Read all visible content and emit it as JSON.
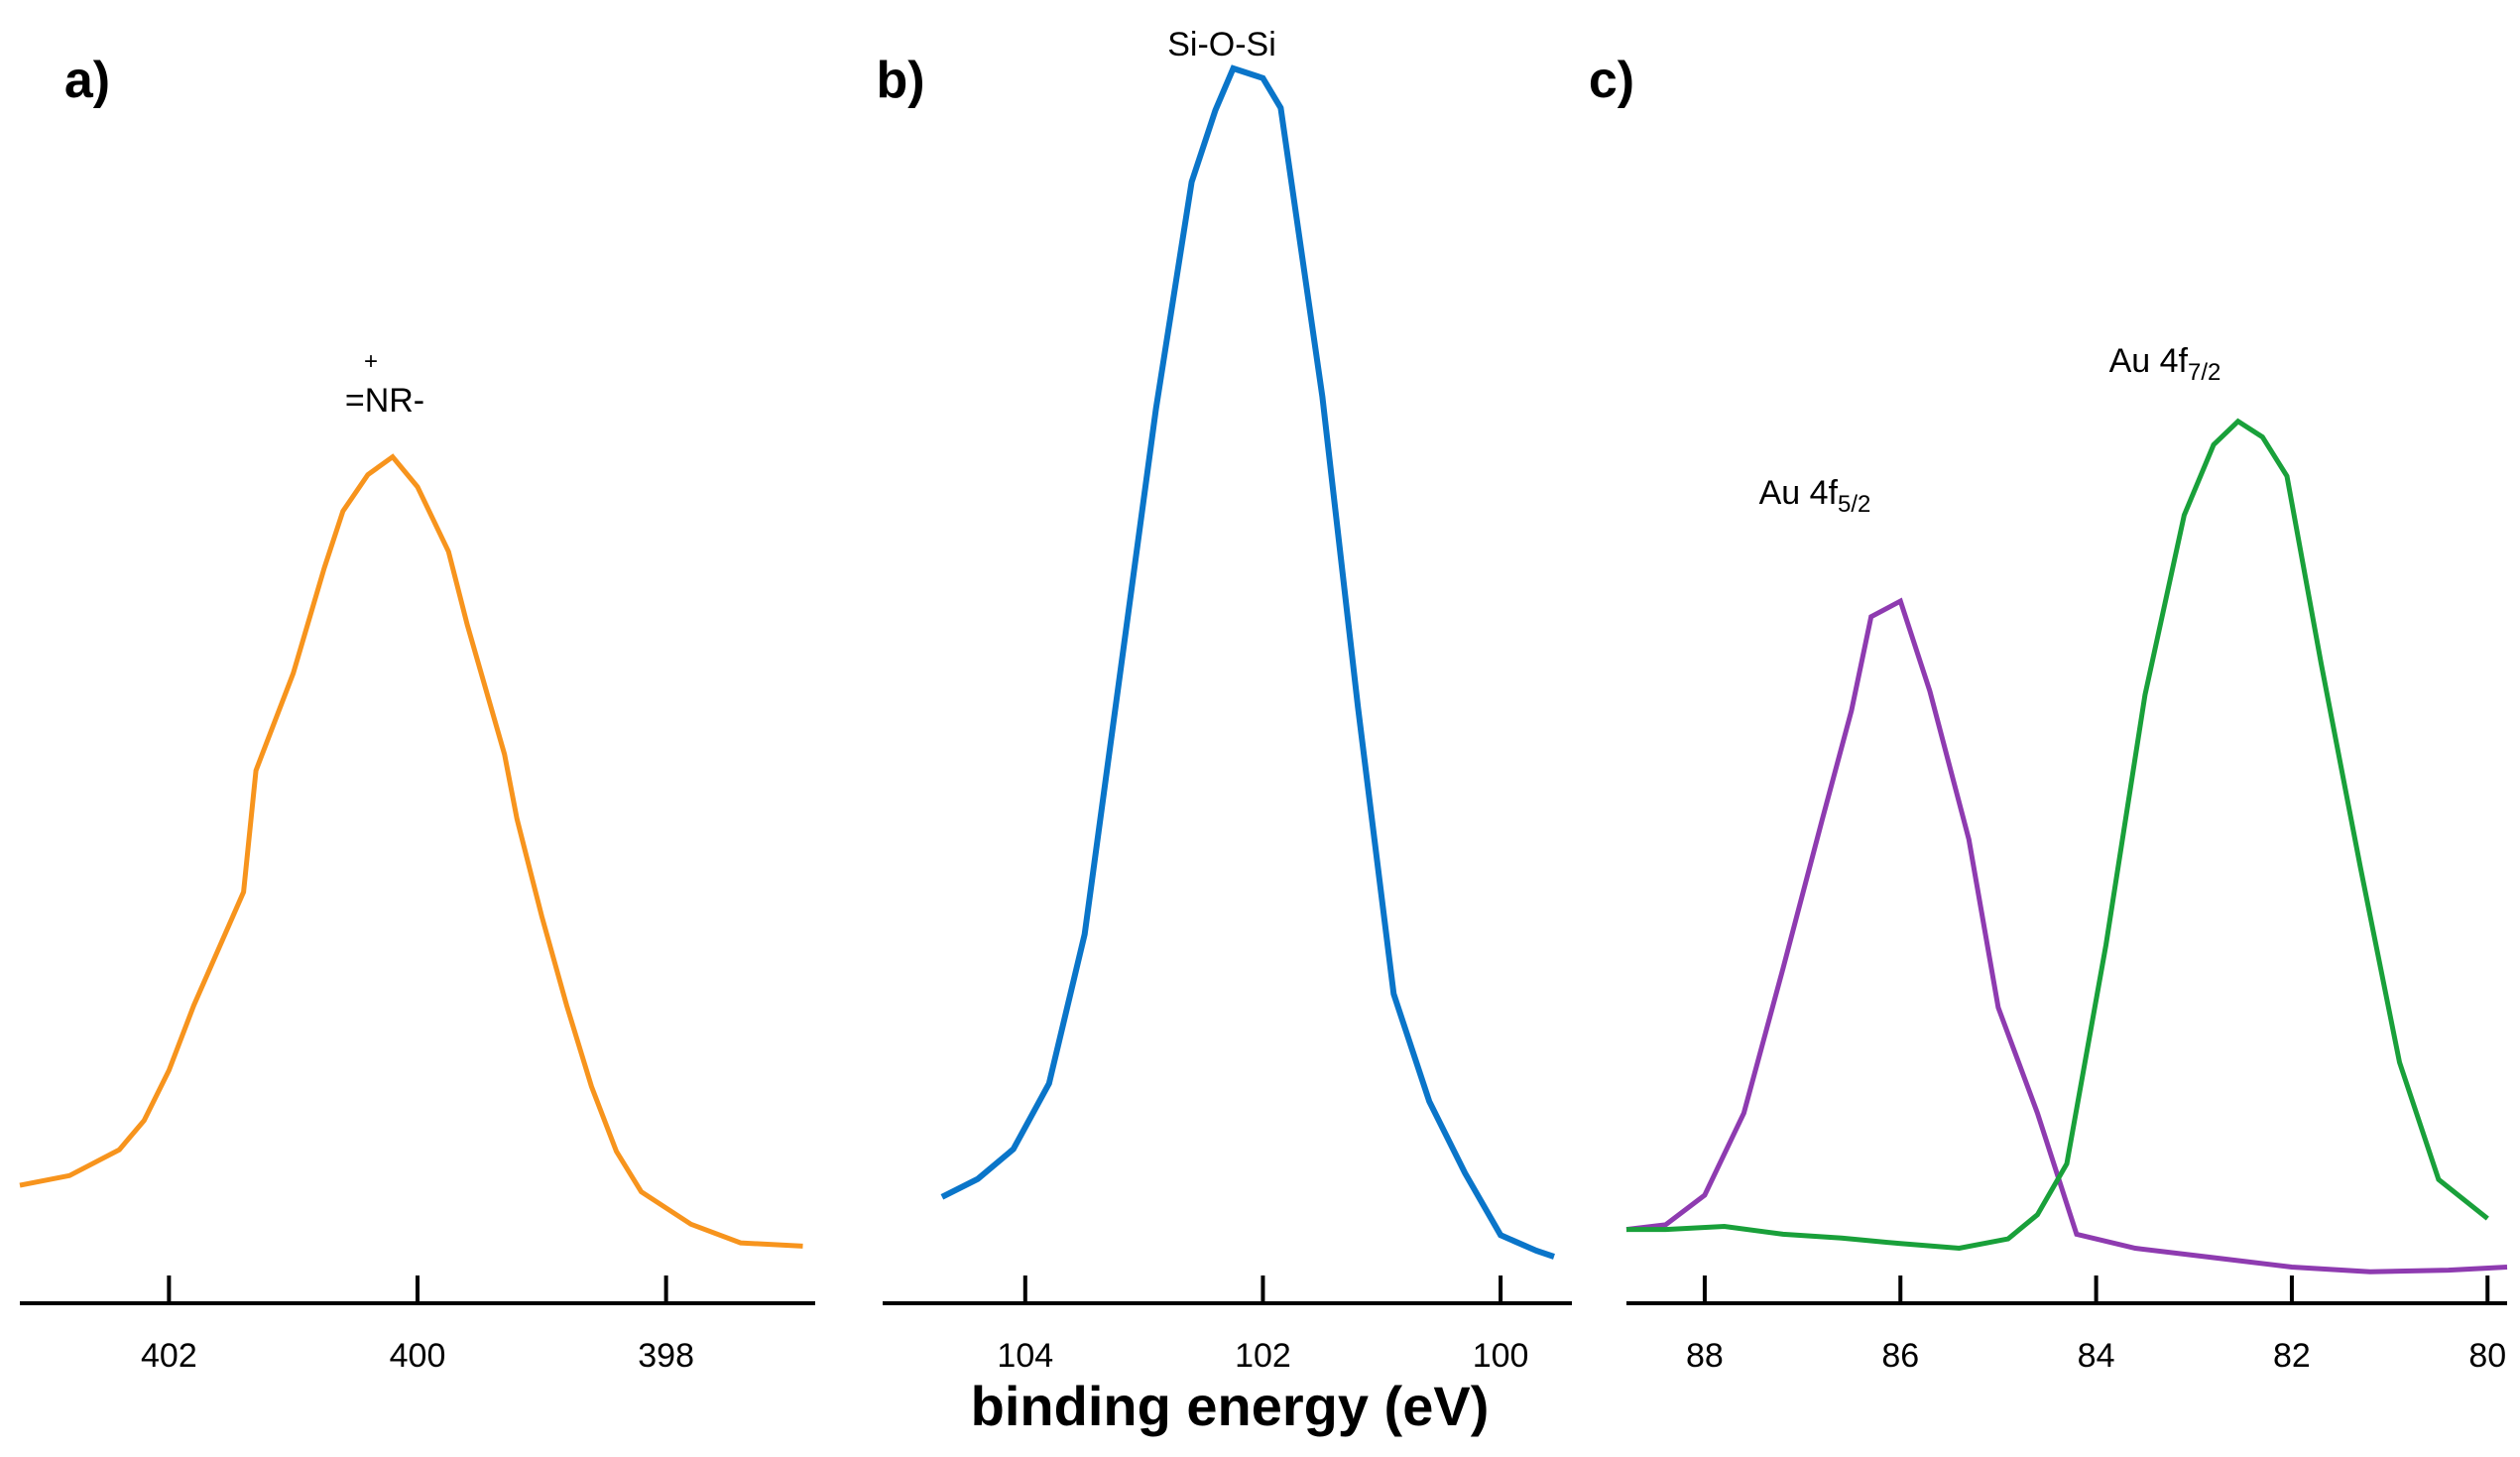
{
  "xlabel": "binding energy (eV)",
  "chart_data": [
    {
      "type": "line",
      "panel_label": "a)",
      "xlabel": "",
      "ylabel": "",
      "xlim": [
        403.2,
        396.8
      ],
      "x_reversed": true,
      "y_axis_shown": false,
      "xticks": [
        402,
        400,
        398
      ],
      "xtick_labels": [
        "402",
        "400",
        "398"
      ],
      "series": [
        {
          "color": "#F7941D",
          "x": [
            403.2,
            402.8,
            402.4,
            402.2,
            402.0,
            401.8,
            401.6,
            401.4,
            401.3,
            401.0,
            400.75,
            400.6,
            400.4,
            400.2,
            400.0,
            399.75,
            399.6,
            399.3,
            399.2,
            399.0,
            398.8,
            398.6,
            398.4,
            398.2,
            397.8,
            397.4,
            396.9
          ],
          "y": [
            0.088,
            0.1,
            0.132,
            0.168,
            0.23,
            0.31,
            0.38,
            0.45,
            0.6,
            0.72,
            0.85,
            0.92,
            0.965,
            0.987,
            0.95,
            0.87,
            0.78,
            0.62,
            0.54,
            0.42,
            0.31,
            0.21,
            0.13,
            0.08,
            0.04,
            0.017,
            0.013
          ]
        }
      ],
      "annotations": [
        {
          "text": "=NR-",
          "superscript": "+",
          "x": 400.4
        }
      ]
    },
    {
      "type": "line",
      "panel_label": "b)",
      "xlabel": "binding energy (eV)",
      "ylabel": "",
      "xlim": [
        105.2,
        99.4
      ],
      "x_reversed": true,
      "y_axis_shown": false,
      "xticks": [
        104,
        102,
        100
      ],
      "xtick_labels": [
        "104",
        "102",
        "100"
      ],
      "series": [
        {
          "color": "#0A75C9",
          "x": [
            104.7,
            104.4,
            104.1,
            103.8,
            103.5,
            103.2,
            102.9,
            102.6,
            102.4,
            102.25,
            102.0,
            101.85,
            101.5,
            101.2,
            100.9,
            100.6,
            100.3,
            100.0,
            99.7,
            99.55
          ],
          "y": [
            0.05,
            0.065,
            0.09,
            0.145,
            0.27,
            0.49,
            0.71,
            0.9,
            0.96,
            0.995,
            0.987,
            0.962,
            0.72,
            0.46,
            0.22,
            0.13,
            0.07,
            0.018,
            0.005,
            0.0
          ]
        }
      ],
      "annotations": [
        {
          "text": "Si-O-Si",
          "x": 102.1
        }
      ]
    },
    {
      "type": "line",
      "panel_label": "c)",
      "xlabel": "",
      "ylabel": "",
      "xlim": [
        88.8,
        79.8
      ],
      "x_reversed": true,
      "y_axis_shown": false,
      "xticks": [
        88,
        86,
        84,
        82,
        80
      ],
      "xtick_labels": [
        "88",
        "86",
        "84",
        "82",
        "80"
      ],
      "series": [
        {
          "name": "Au 4f5/2",
          "color": "#8E3BB0",
          "x": [
            88.8,
            88.4,
            88.0,
            87.6,
            87.2,
            86.8,
            86.5,
            86.3,
            86.0,
            85.7,
            85.3,
            85.0,
            84.6,
            84.2,
            83.6,
            82.8,
            82.0,
            81.2,
            80.4,
            79.8
          ],
          "y": [
            0.036,
            0.042,
            0.08,
            0.185,
            0.37,
            0.56,
            0.7,
            0.82,
            0.84,
            0.725,
            0.535,
            0.32,
            0.185,
            0.03,
            0.012,
            0.0,
            -0.012,
            -0.018,
            -0.016,
            -0.012
          ]
        },
        {
          "name": "Au 4f7/2",
          "color": "#19A03A",
          "x": [
            88.8,
            88.4,
            87.8,
            87.2,
            86.6,
            86.0,
            85.4,
            84.9,
            84.6,
            84.3,
            83.9,
            83.5,
            83.1,
            82.8,
            82.55,
            82.3,
            82.05,
            81.7,
            81.3,
            80.9,
            80.5,
            80.0
          ],
          "y": [
            0.036,
            0.036,
            0.04,
            0.03,
            0.025,
            0.018,
            0.012,
            0.024,
            0.055,
            0.12,
            0.4,
            0.72,
            0.95,
            1.04,
            1.07,
            1.05,
            1.0,
            0.76,
            0.5,
            0.25,
            0.1,
            0.05
          ]
        }
      ],
      "annotations": [
        {
          "text": "Au 4f",
          "sub": "5/2",
          "series": "Au 4f5/2"
        },
        {
          "text": "Au 4f",
          "sub": "7/2",
          "series": "Au 4f7/2"
        }
      ]
    }
  ]
}
